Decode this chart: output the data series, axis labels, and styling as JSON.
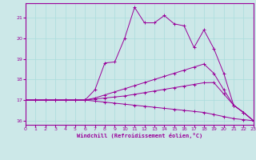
{
  "xlabel": "Windchill (Refroidissement éolien,°C)",
  "background_color": "#cce8e8",
  "line_color": "#990099",
  "xlim": [
    0,
    23
  ],
  "ylim": [
    15.8,
    21.7
  ],
  "yticks": [
    16,
    17,
    18,
    19,
    20,
    21
  ],
  "xticks": [
    0,
    1,
    2,
    3,
    4,
    5,
    6,
    7,
    8,
    9,
    10,
    11,
    12,
    13,
    14,
    15,
    16,
    17,
    18,
    19,
    20,
    21,
    22,
    23
  ],
  "series": [
    {
      "x": [
        0,
        1,
        2,
        3,
        4,
        5,
        6,
        7,
        8,
        9,
        10,
        11,
        12,
        13,
        14,
        15,
        16,
        17,
        18,
        19,
        20,
        21,
        22,
        23
      ],
      "y": [
        17.0,
        17.0,
        17.0,
        17.0,
        17.0,
        17.0,
        17.0,
        17.5,
        18.8,
        18.85,
        20.0,
        21.5,
        20.75,
        20.75,
        21.1,
        20.7,
        20.6,
        19.55,
        20.4,
        19.5,
        18.3,
        16.75,
        16.4,
        16.0
      ]
    },
    {
      "x": [
        0,
        1,
        2,
        3,
        4,
        5,
        6,
        7,
        8,
        9,
        10,
        11,
        12,
        13,
        14,
        15,
        16,
        17,
        18,
        19,
        20,
        21,
        22,
        23
      ],
      "y": [
        17.0,
        17.0,
        17.0,
        17.0,
        17.0,
        17.0,
        17.0,
        17.1,
        17.25,
        17.4,
        17.55,
        17.7,
        17.85,
        18.0,
        18.15,
        18.3,
        18.45,
        18.6,
        18.75,
        18.3,
        17.5,
        16.75,
        16.4,
        16.0
      ]
    },
    {
      "x": [
        0,
        1,
        2,
        3,
        4,
        5,
        6,
        7,
        8,
        9,
        10,
        11,
        12,
        13,
        14,
        15,
        16,
        17,
        18,
        19,
        20,
        21,
        22,
        23
      ],
      "y": [
        17.0,
        17.0,
        17.0,
        17.0,
        17.0,
        17.0,
        17.0,
        17.05,
        17.1,
        17.15,
        17.2,
        17.28,
        17.36,
        17.44,
        17.52,
        17.6,
        17.68,
        17.76,
        17.84,
        17.85,
        17.3,
        16.75,
        16.4,
        16.0
      ]
    },
    {
      "x": [
        0,
        1,
        2,
        3,
        4,
        5,
        6,
        7,
        8,
        9,
        10,
        11,
        12,
        13,
        14,
        15,
        16,
        17,
        18,
        19,
        20,
        21,
        22,
        23
      ],
      "y": [
        17.0,
        17.0,
        17.0,
        17.0,
        17.0,
        17.0,
        17.0,
        16.95,
        16.9,
        16.85,
        16.8,
        16.75,
        16.7,
        16.65,
        16.6,
        16.55,
        16.5,
        16.45,
        16.4,
        16.3,
        16.2,
        16.1,
        16.05,
        16.0
      ]
    }
  ]
}
